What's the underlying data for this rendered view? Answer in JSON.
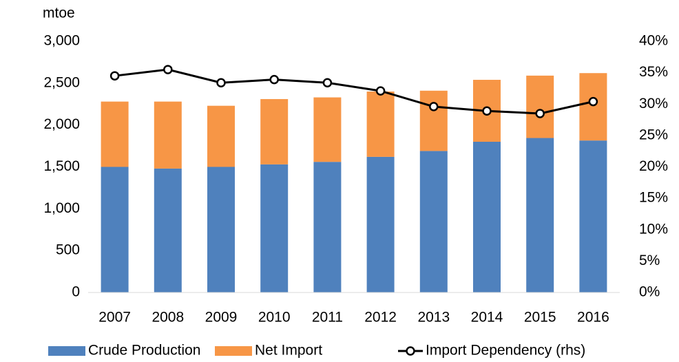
{
  "chart_data": {
    "type": "bar_line",
    "ylabel": "mtoe",
    "categories": [
      "2007",
      "2008",
      "2009",
      "2010",
      "2011",
      "2012",
      "2013",
      "2014",
      "2015",
      "2016"
    ],
    "series": [
      {
        "name": "Crude Production",
        "color": "#4f81bd",
        "values": [
          1500,
          1480,
          1500,
          1530,
          1560,
          1620,
          1690,
          1800,
          1845,
          1815
        ]
      },
      {
        "name": "Net Import",
        "color": "#f79646",
        "values": [
          780,
          800,
          730,
          780,
          770,
          780,
          720,
          740,
          745,
          805
        ]
      },
      {
        "name": "Import Dependency (rhs)",
        "color": "#000000",
        "axis": "y2",
        "values": [
          34.5,
          35.5,
          33.4,
          33.9,
          33.4,
          32.1,
          29.6,
          28.9,
          28.5,
          30.4
        ]
      }
    ],
    "ylim": [
      0,
      3000
    ],
    "yticks": [
      0,
      500,
      {
        "value": 1000,
        "label": "1,000"
      },
      {
        "value": 1500,
        "label": "1,500"
      },
      {
        "value": 2000,
        "label": "2,000"
      },
      {
        "value": 2500,
        "label": "2,500"
      },
      {
        "value": 3000,
        "label": "3,000"
      }
    ],
    "y2lim": [
      0,
      40
    ],
    "y2ticks": [
      {
        "value": 0,
        "label": "0%"
      },
      {
        "value": 5,
        "label": "5%"
      },
      {
        "value": 10,
        "label": "10%"
      },
      {
        "value": 15,
        "label": "15%"
      },
      {
        "value": 20,
        "label": "20%"
      },
      {
        "value": 25,
        "label": "25%"
      },
      {
        "value": 30,
        "label": "30%"
      },
      {
        "value": 35,
        "label": "35%"
      },
      {
        "value": 40,
        "label": "40%"
      }
    ],
    "legend": "bottom"
  }
}
